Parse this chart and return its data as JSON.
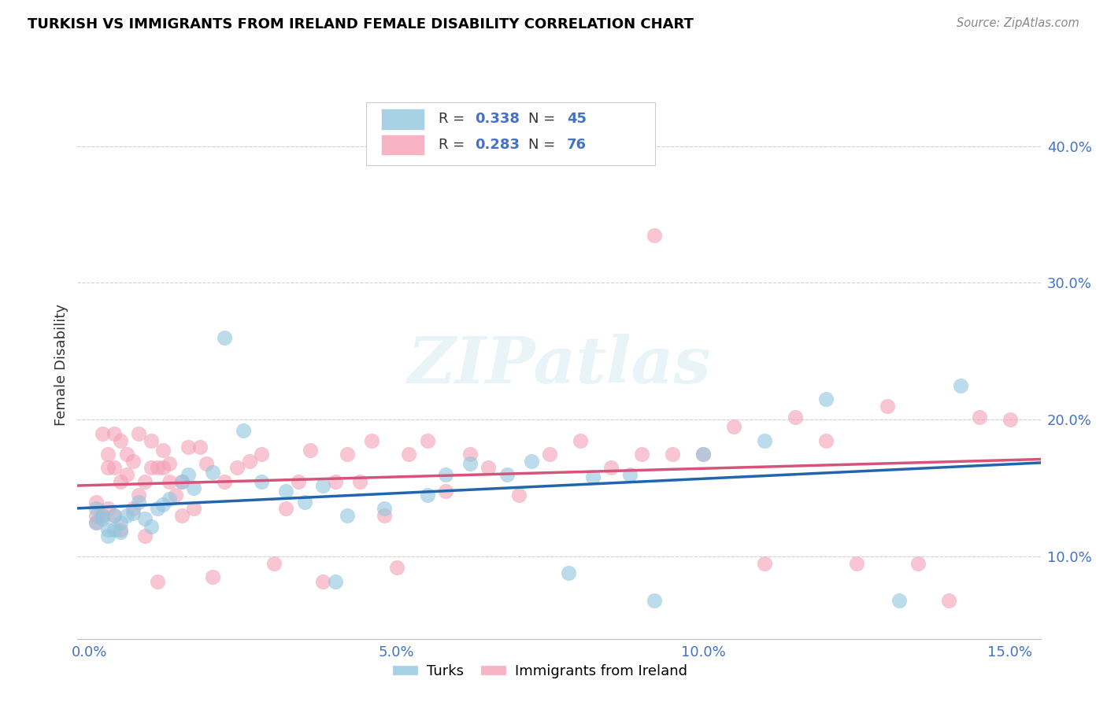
{
  "title": "TURKISH VS IMMIGRANTS FROM IRELAND FEMALE DISABILITY CORRELATION CHART",
  "source": "Source: ZipAtlas.com",
  "ylabel": "Female Disability",
  "xlim": [
    -0.002,
    0.155
  ],
  "ylim": [
    0.04,
    0.44
  ],
  "xtick_vals": [
    0.0,
    0.05,
    0.1,
    0.15
  ],
  "ytick_vals": [
    0.1,
    0.2,
    0.3,
    0.4
  ],
  "turks_R": 0.338,
  "turks_N": 45,
  "ireland_R": 0.283,
  "ireland_N": 76,
  "turks_color": "#92c5de",
  "ireland_color": "#f4a0b5",
  "turks_line_color": "#2166ac",
  "ireland_line_color": "#d6537a",
  "tick_color": "#4472c4",
  "watermark": "ZIPatlas",
  "turks_x": [
    0.001,
    0.001,
    0.002,
    0.002,
    0.003,
    0.003,
    0.004,
    0.004,
    0.005,
    0.005,
    0.006,
    0.007,
    0.008,
    0.009,
    0.01,
    0.011,
    0.012,
    0.013,
    0.015,
    0.016,
    0.017,
    0.02,
    0.022,
    0.025,
    0.028,
    0.032,
    0.035,
    0.038,
    0.04,
    0.042,
    0.048,
    0.055,
    0.058,
    0.062,
    0.068,
    0.072,
    0.078,
    0.082,
    0.088,
    0.092,
    0.1,
    0.11,
    0.12,
    0.132,
    0.142
  ],
  "turks_y": [
    0.125,
    0.135,
    0.13,
    0.128,
    0.12,
    0.115,
    0.13,
    0.12,
    0.125,
    0.118,
    0.13,
    0.132,
    0.14,
    0.128,
    0.122,
    0.135,
    0.138,
    0.142,
    0.155,
    0.16,
    0.15,
    0.162,
    0.26,
    0.192,
    0.155,
    0.148,
    0.14,
    0.152,
    0.082,
    0.13,
    0.135,
    0.145,
    0.16,
    0.168,
    0.16,
    0.17,
    0.088,
    0.158,
    0.16,
    0.068,
    0.175,
    0.185,
    0.215,
    0.068,
    0.225
  ],
  "ireland_x": [
    0.001,
    0.001,
    0.001,
    0.002,
    0.002,
    0.003,
    0.003,
    0.003,
    0.004,
    0.004,
    0.004,
    0.005,
    0.005,
    0.005,
    0.006,
    0.006,
    0.007,
    0.007,
    0.008,
    0.008,
    0.009,
    0.009,
    0.01,
    0.01,
    0.011,
    0.011,
    0.012,
    0.012,
    0.013,
    0.013,
    0.014,
    0.015,
    0.015,
    0.016,
    0.017,
    0.018,
    0.019,
    0.02,
    0.022,
    0.024,
    0.026,
    0.028,
    0.03,
    0.032,
    0.034,
    0.036,
    0.038,
    0.04,
    0.042,
    0.044,
    0.046,
    0.048,
    0.05,
    0.052,
    0.055,
    0.058,
    0.062,
    0.065,
    0.07,
    0.075,
    0.08,
    0.085,
    0.09,
    0.092,
    0.095,
    0.1,
    0.105,
    0.11,
    0.115,
    0.12,
    0.125,
    0.13,
    0.135,
    0.14,
    0.145,
    0.15
  ],
  "ireland_y": [
    0.125,
    0.13,
    0.14,
    0.19,
    0.13,
    0.135,
    0.165,
    0.175,
    0.13,
    0.165,
    0.19,
    0.12,
    0.155,
    0.185,
    0.175,
    0.16,
    0.135,
    0.17,
    0.145,
    0.19,
    0.115,
    0.155,
    0.165,
    0.185,
    0.165,
    0.082,
    0.165,
    0.178,
    0.168,
    0.155,
    0.145,
    0.13,
    0.155,
    0.18,
    0.135,
    0.18,
    0.168,
    0.085,
    0.155,
    0.165,
    0.17,
    0.175,
    0.095,
    0.135,
    0.155,
    0.178,
    0.082,
    0.155,
    0.175,
    0.155,
    0.185,
    0.13,
    0.092,
    0.175,
    0.185,
    0.148,
    0.175,
    0.165,
    0.145,
    0.175,
    0.185,
    0.165,
    0.175,
    0.335,
    0.175,
    0.175,
    0.195,
    0.095,
    0.202,
    0.185,
    0.095,
    0.21,
    0.095,
    0.068,
    0.202,
    0.2
  ]
}
